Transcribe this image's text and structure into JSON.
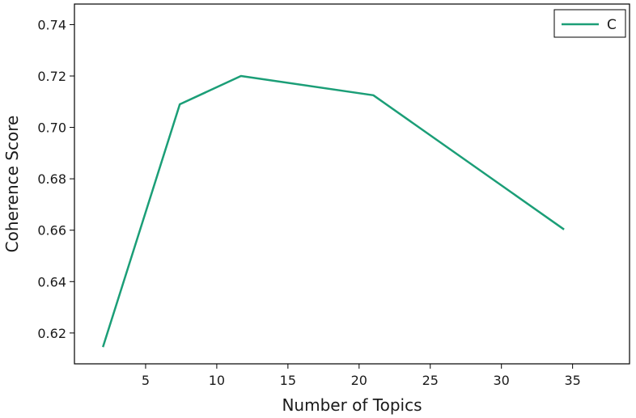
{
  "chart_data": {
    "type": "line",
    "title": "",
    "xlabel": "Number of Topics",
    "ylabel": "Coherence Score",
    "xlim": [
      0,
      39
    ],
    "ylim": [
      0.608,
      0.748
    ],
    "xticks": [
      5,
      10,
      15,
      20,
      25,
      30,
      35
    ],
    "yticks": [
      0.62,
      0.64,
      0.66,
      0.68,
      0.7,
      0.72,
      0.74
    ],
    "ytick_labels": [
      "0.62",
      "0.64",
      "0.66",
      "0.68",
      "0.70",
      "0.72",
      "0.74"
    ],
    "grid": false,
    "legend_position": "top-right",
    "series": [
      {
        "name": "C",
        "color": "#1b9e77",
        "x": [
          2,
          7.4,
          11.7,
          21,
          34.4
        ],
        "y": [
          0.6145,
          0.709,
          0.72,
          0.7125,
          0.6603
        ]
      }
    ]
  }
}
